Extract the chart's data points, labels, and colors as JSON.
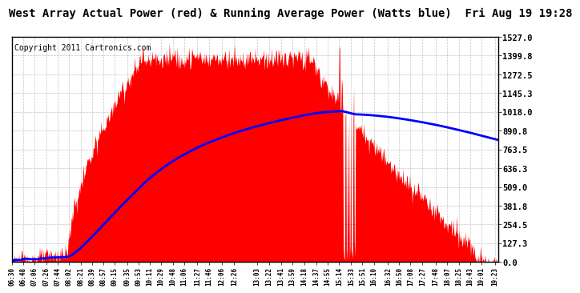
{
  "title": "West Array Actual Power (red) & Running Average Power (Watts blue)  Fri Aug 19 19:28",
  "copyright": "Copyright 2011 Cartronics.com",
  "yticks": [
    0.0,
    127.3,
    254.5,
    381.8,
    509.0,
    636.3,
    763.5,
    890.8,
    1018.0,
    1145.3,
    1272.5,
    1399.8,
    1527.0
  ],
  "ymax": 1527.0,
  "xtick_labels": [
    "06:30",
    "06:48",
    "07:06",
    "07:26",
    "07:44",
    "08:02",
    "08:21",
    "08:39",
    "08:57",
    "09:15",
    "09:35",
    "09:53",
    "10:11",
    "10:29",
    "10:48",
    "11:06",
    "11:27",
    "11:46",
    "12:06",
    "12:26",
    "13:03",
    "13:22",
    "13:41",
    "13:59",
    "14:18",
    "14:37",
    "14:55",
    "15:14",
    "15:33",
    "15:51",
    "16:10",
    "16:32",
    "16:50",
    "17:08",
    "17:27",
    "17:48",
    "18:07",
    "18:25",
    "18:43",
    "19:01",
    "19:23"
  ],
  "actual_color": "#FF0000",
  "avg_color": "#0000FF",
  "bg_color": "#FFFFFF",
  "grid_color": "#AAAAAA",
  "title_fontsize": 10,
  "copyright_fontsize": 7
}
